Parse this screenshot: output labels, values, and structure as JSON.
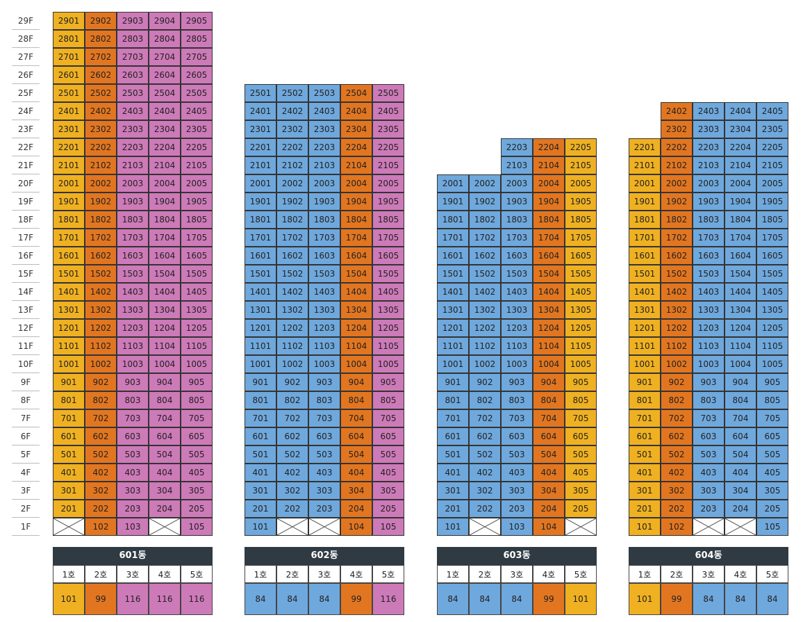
{
  "floors": [
    "29F",
    "28F",
    "27F",
    "26F",
    "25F",
    "24F",
    "23F",
    "22F",
    "21F",
    "20F",
    "19F",
    "18F",
    "17F",
    "16F",
    "15F",
    "14F",
    "13F",
    "12F",
    "11F",
    "10F",
    "9F",
    "8F",
    "7F",
    "6F",
    "5F",
    "4F",
    "3F",
    "2F",
    "1F"
  ],
  "colors": {
    "Y": "#efb121",
    "O": "#e27620",
    "P": "#cd7ab8",
    "B": "#6fa8dc",
    "empty": "#ffffff",
    "header": "#2f3a42"
  },
  "buildings": [
    {
      "name": "601동",
      "col_labels": [
        "1호",
        "2호",
        "3호",
        "4호",
        "5호"
      ],
      "areas": [
        "101",
        "99",
        "116",
        "116",
        "116"
      ],
      "area_colors": [
        "Y",
        "O",
        "P",
        "P",
        "P"
      ],
      "column_colors": [
        "Y",
        "O",
        "P",
        "P",
        "P"
      ],
      "top_floor": [
        29,
        29,
        29,
        29,
        29
      ],
      "first_floor_units": [
        "",
        "102",
        "103",
        "",
        "105"
      ]
    },
    {
      "name": "602동",
      "col_labels": [
        "1호",
        "2호",
        "3호",
        "4호",
        "5호"
      ],
      "areas": [
        "84",
        "84",
        "84",
        "99",
        "116"
      ],
      "area_colors": [
        "B",
        "B",
        "B",
        "O",
        "P"
      ],
      "column_colors": [
        "B",
        "B",
        "B",
        "O",
        "P"
      ],
      "top_floor": [
        25,
        25,
        25,
        25,
        25
      ],
      "first_floor_units": [
        "101",
        "",
        "",
        "104",
        "105"
      ]
    },
    {
      "name": "603동",
      "col_labels": [
        "1호",
        "2호",
        "3호",
        "4호",
        "5호"
      ],
      "areas": [
        "84",
        "84",
        "84",
        "99",
        "101"
      ],
      "area_colors": [
        "B",
        "B",
        "B",
        "O",
        "Y"
      ],
      "column_colors": [
        "B",
        "B",
        "B",
        "O",
        "Y"
      ],
      "top_floor": [
        20,
        20,
        22,
        22,
        22
      ],
      "first_floor_units": [
        "101",
        "",
        "103",
        "104",
        ""
      ]
    },
    {
      "name": "604동",
      "col_labels": [
        "1호",
        "2호",
        "3호",
        "4호",
        "5호"
      ],
      "areas": [
        "101",
        "99",
        "84",
        "84",
        "84"
      ],
      "area_colors": [
        "Y",
        "O",
        "B",
        "B",
        "B"
      ],
      "column_colors": [
        "Y",
        "O",
        "B",
        "B",
        "B"
      ],
      "top_floor": [
        22,
        24,
        24,
        24,
        24
      ],
      "first_floor_units": [
        "101",
        "102",
        "",
        "",
        "105"
      ]
    }
  ]
}
